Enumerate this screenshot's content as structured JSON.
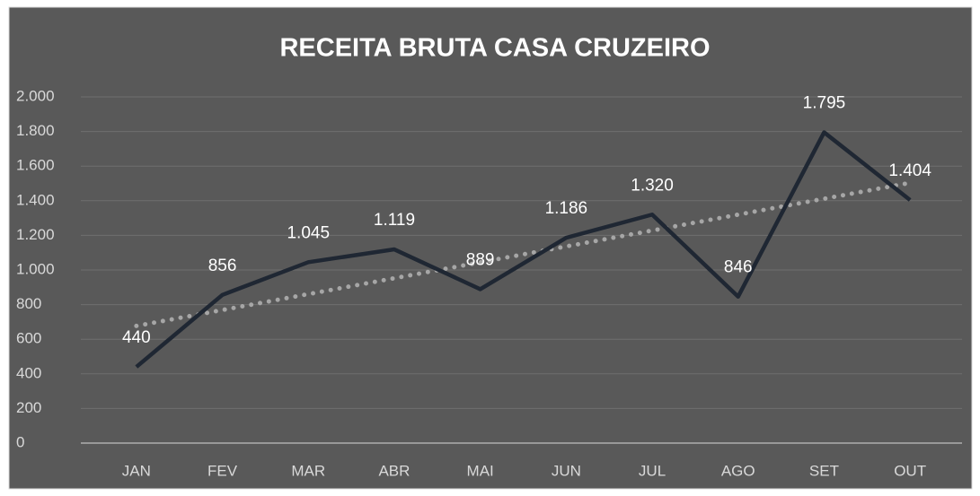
{
  "chart_data": {
    "type": "line",
    "title": "RECEITA BRUTA CASA CRUZEIRO",
    "categories": [
      "JAN",
      "FEV",
      "MAR",
      "ABR",
      "MAI",
      "JUN",
      "JUL",
      "AGO",
      "SET",
      "OUT"
    ],
    "series": [
      {
        "name": "Receita Bruta",
        "color": "#1f2733",
        "values": [
          440,
          856,
          1045,
          1119,
          889,
          1186,
          1320,
          846,
          1795,
          1404
        ],
        "value_labels": [
          "440",
          "856",
          "1.045",
          "1.119",
          "889",
          "1.186",
          "1.320",
          "846",
          "1.795",
          "1.404"
        ]
      }
    ],
    "trendline": {
      "type": "linear",
      "color": "#a6a6a6",
      "style": "dotted"
    },
    "ylim": [
      0,
      2000
    ],
    "yticks": [
      0,
      200,
      400,
      600,
      800,
      {
        "value": 1000,
        "label": "1.000"
      },
      {
        "value": 1200,
        "label": "1.200"
      },
      {
        "value": 1400,
        "label": "1.400"
      },
      {
        "value": 1600,
        "label": "1.600"
      },
      {
        "value": 1800,
        "label": "1.800"
      },
      {
        "value": 2000,
        "label": "2.000"
      }
    ],
    "grid": true
  }
}
